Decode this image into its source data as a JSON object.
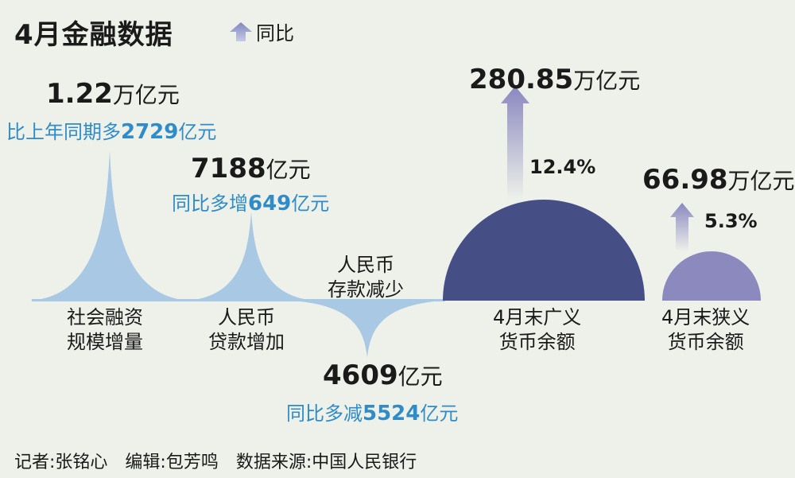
{
  "title": "4月金融数据",
  "legend": {
    "label": "同比",
    "icon": "up-arrow-icon"
  },
  "colors": {
    "light_blue": "#a9c8e3",
    "broad_money": "#454f86",
    "narrow_money": "#8c89bf",
    "text_accent": "#2f8cc8",
    "background": "#eef1ea"
  },
  "chart_data": {
    "type": "mixed",
    "title": "4月金融数据",
    "items": [
      {
        "name_lines": [
          "社会融资",
          "规模增量"
        ],
        "value_num": "1.22",
        "value_unit": "万亿元",
        "compare_prefix": "比上年同期多",
        "compare_num": "2729",
        "compare_unit": "亿元",
        "value_yi": 12200,
        "direction": "up"
      },
      {
        "name_lines": [
          "人民币",
          "贷款增加"
        ],
        "value_num": "7188",
        "value_unit": "亿元",
        "compare_prefix": "同比多增",
        "compare_num": "649",
        "compare_unit": "亿元",
        "value_yi": 7188,
        "direction": "up"
      },
      {
        "name_lines": [
          "人民币",
          "存款减少"
        ],
        "value_num": "4609",
        "value_unit": "亿元",
        "compare_prefix": "同比多减",
        "compare_num": "5524",
        "compare_unit": "亿元",
        "value_yi": -4609,
        "direction": "down"
      },
      {
        "name_lines": [
          "4月末广义",
          "货币余额"
        ],
        "value_num": "280.85",
        "value_unit": "万亿元",
        "yoy": "12.4%",
        "value_wanyi": 280.85,
        "yoy_value": 12.4
      },
      {
        "name_lines": [
          "4月末狭义",
          "货币余额"
        ],
        "value_num": "66.98",
        "value_unit": "万亿元",
        "yoy": "5.3%",
        "value_wanyi": 66.98,
        "yoy_value": 5.3
      }
    ]
  },
  "footer": "记者:张铭心　编辑:包芳鸣　数据来源:中国人民银行"
}
